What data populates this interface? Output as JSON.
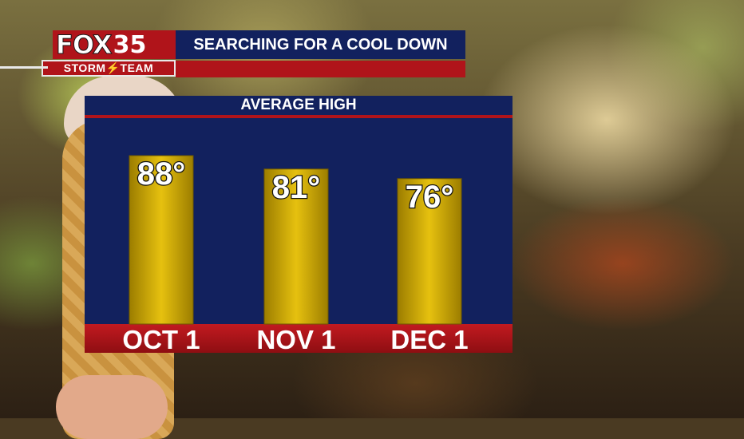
{
  "logo": {
    "brand": "FOX",
    "channel": "35",
    "team": "STORM⚡TEAM"
  },
  "headline": "SEARCHING FOR A COOL DOWN",
  "chart_data": {
    "type": "bar",
    "title": "AVERAGE HIGH",
    "categories": [
      "OCT 1",
      "NOV 1",
      "DEC 1"
    ],
    "values": [
      88,
      81,
      76
    ],
    "value_labels": [
      "88°",
      "81°",
      "76°"
    ],
    "xlabel": "",
    "ylabel": "",
    "grid": false,
    "legend": "none",
    "colors": {
      "bar": "#e6c10f",
      "panel": "#12215e",
      "accent": "#b0141a"
    }
  }
}
